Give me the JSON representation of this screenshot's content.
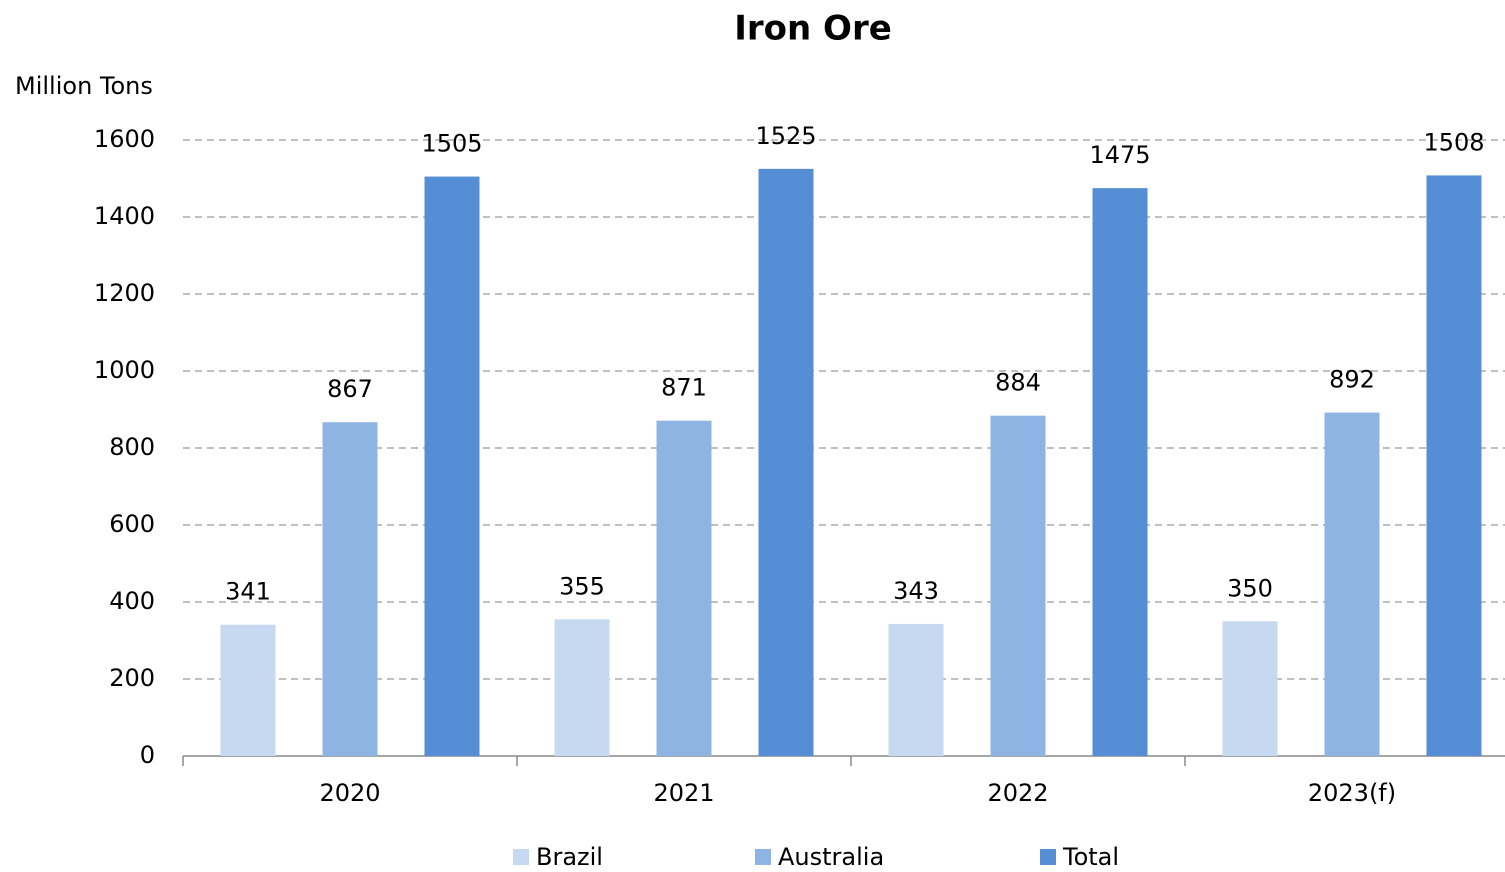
{
  "chart_data": {
    "type": "bar",
    "title": "Iron Ore",
    "y_label": "Million Tons",
    "categories": [
      "2020",
      "2021",
      "2022",
      "2023(f)"
    ],
    "series": [
      {
        "name": "Brazil",
        "color": "#c6d9f1",
        "values": [
          341,
          355,
          343,
          350
        ]
      },
      {
        "name": "Australia",
        "color": "#8eb4e3",
        "values": [
          867,
          871,
          884,
          892
        ]
      },
      {
        "name": "Total",
        "color": "#558ed5",
        "values": [
          1505,
          1525,
          1475,
          1508
        ]
      }
    ],
    "ylim": [
      0,
      1600
    ],
    "yticks": [
      0,
      200,
      400,
      600,
      800,
      1000,
      1200,
      1400,
      1600
    ],
    "grid": true,
    "legend": "bottom"
  }
}
